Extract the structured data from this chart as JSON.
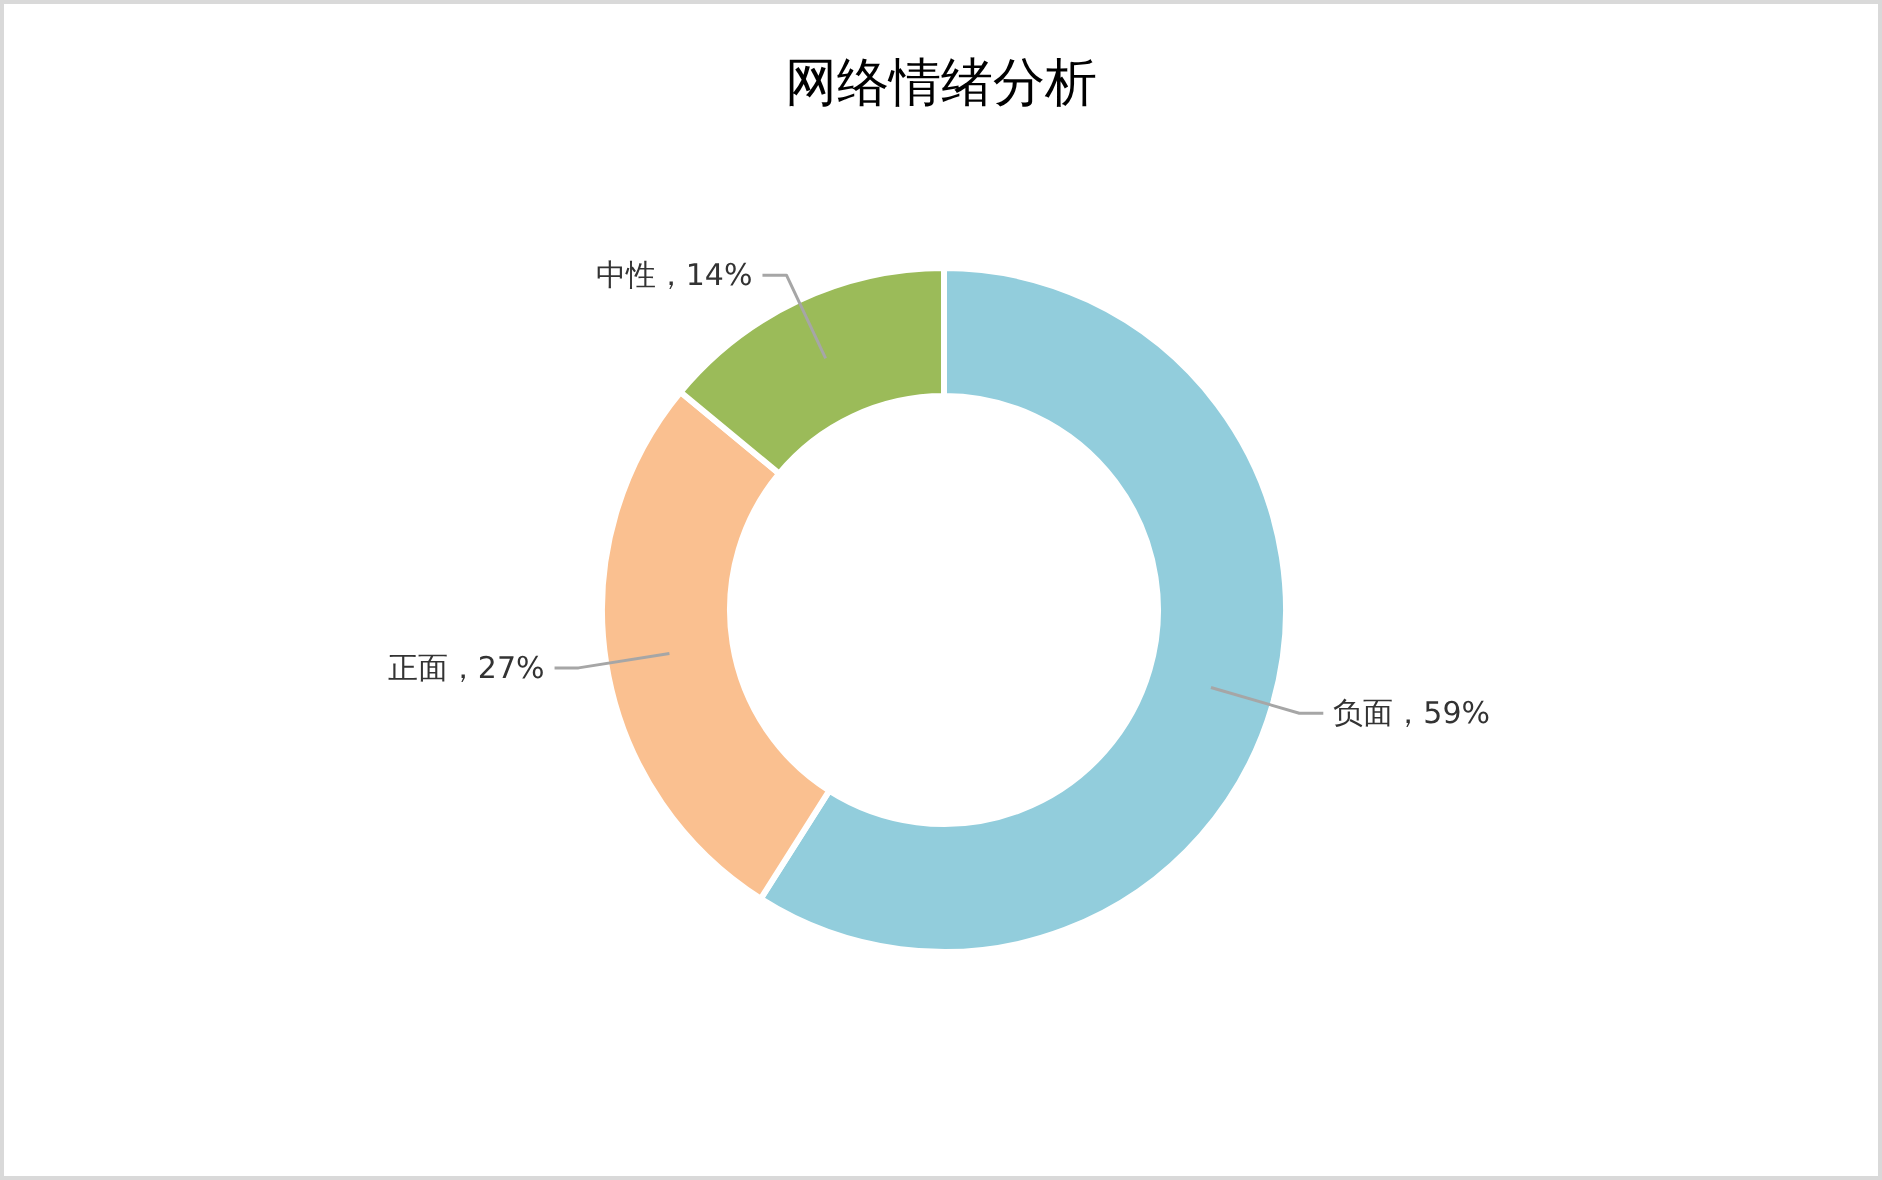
{
  "chart_data": {
    "type": "donut",
    "title": "网络情绪分析",
    "categories": [
      "负面",
      "正面",
      "中性"
    ],
    "values": [
      59,
      27,
      14
    ],
    "colors": [
      "#92cddc",
      "#fac090",
      "#9bbb59"
    ],
    "value_labels": [
      "59%",
      "27%",
      "14%"
    ]
  }
}
